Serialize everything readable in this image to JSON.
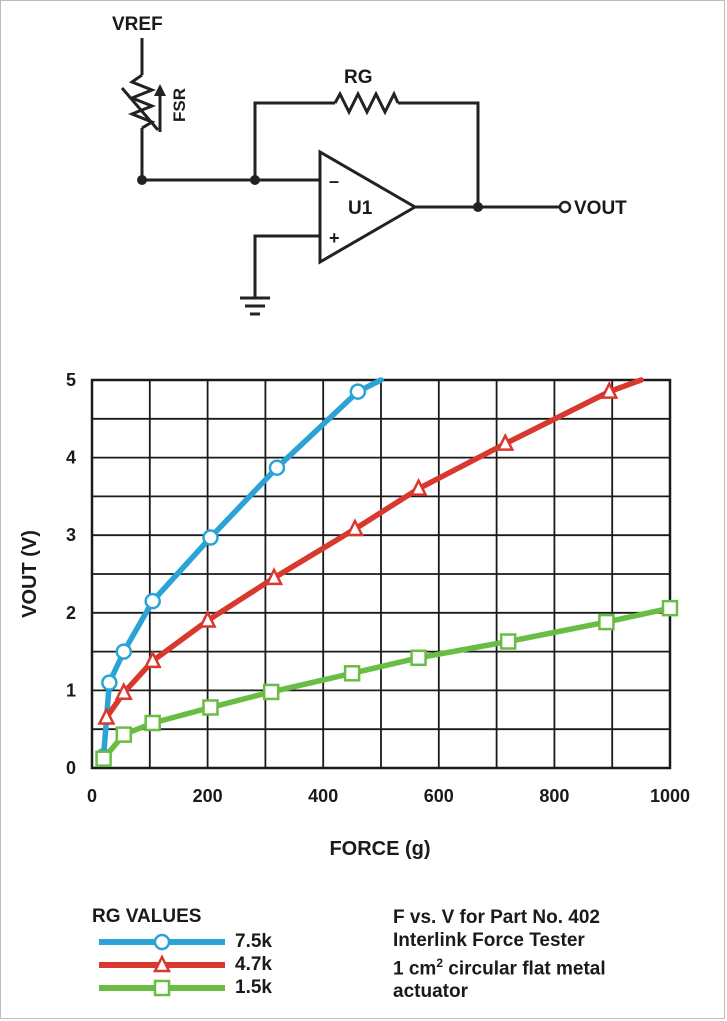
{
  "circuit": {
    "vref_label": "VREF",
    "fsr_label": "FSR",
    "rg_label": "RG",
    "opamp_label": "U1",
    "minus_sign": "–",
    "plus_sign": "+",
    "vout_label": "VOUT"
  },
  "chart_data": {
    "type": "line",
    "xlabel": "FORCE (g)",
    "ylabel": "VOUT (V)",
    "xlim": [
      0,
      1000
    ],
    "ylim": [
      0,
      5
    ],
    "x_ticks": [
      "0",
      "200",
      "400",
      "600",
      "800",
      "1000"
    ],
    "y_ticks": [
      "0",
      "1",
      "2",
      "3",
      "4",
      "5"
    ],
    "grid": true,
    "legend_title": "RG VALUES",
    "series": [
      {
        "name": "7.5k",
        "color": "#2ba3d6",
        "marker": "circle",
        "x": [
          20,
          30,
          55,
          105,
          205,
          320,
          460,
          500
        ],
        "y": [
          0.15,
          1.1,
          1.5,
          2.15,
          2.97,
          3.87,
          4.85,
          5.0
        ],
        "marker_count": 7
      },
      {
        "name": "4.7k",
        "color": "#d9382e",
        "marker": "triangle",
        "x": [
          25,
          55,
          105,
          200,
          315,
          455,
          565,
          715,
          895,
          950
        ],
        "y": [
          0.65,
          0.97,
          1.38,
          1.9,
          2.45,
          3.08,
          3.6,
          4.18,
          4.85,
          5.0
        ],
        "marker_count": 9
      },
      {
        "name": "1.5k",
        "color": "#69bd45",
        "marker": "square",
        "x": [
          20,
          55,
          105,
          205,
          310,
          450,
          565,
          720,
          890,
          1000
        ],
        "y": [
          0.12,
          0.43,
          0.58,
          0.78,
          0.98,
          1.22,
          1.42,
          1.63,
          1.88,
          2.06
        ],
        "marker_count": 10
      }
    ]
  },
  "caption": {
    "line1": "F vs. V for Part No. 402",
    "line2": "Interlink Force Tester",
    "line3_pre": "1 cm",
    "line3_sup": "2",
    "line3_post": " circular flat metal",
    "line4": "actuator"
  }
}
